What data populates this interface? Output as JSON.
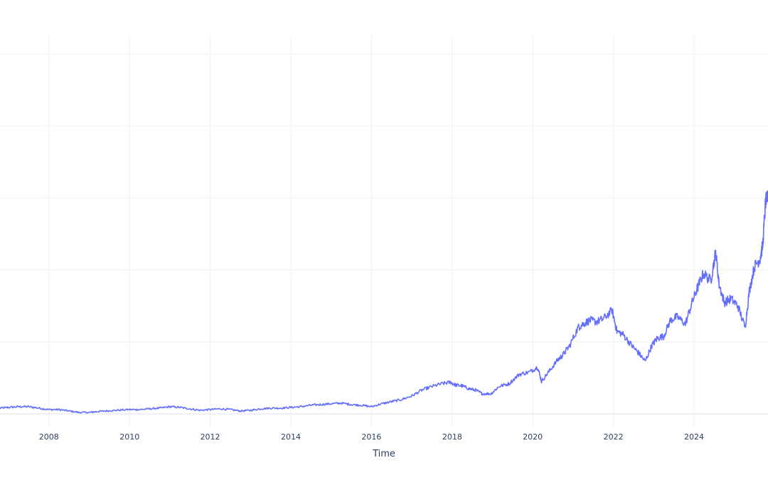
{
  "chart_data": {
    "type": "line",
    "title": "",
    "xlabel": "Time",
    "ylabel": "",
    "xlim": [
      "2006-10-15",
      "2025-11-01"
    ],
    "ylim": [
      0,
      5
    ],
    "grid": true,
    "legend": "none",
    "x_ticks": [
      "2008",
      "2010",
      "2012",
      "2014",
      "2016",
      "2018",
      "2020",
      "2022",
      "2024"
    ],
    "y_gridlines": [
      0,
      1,
      2,
      3,
      4,
      5
    ],
    "series": [
      {
        "color": "#636efa",
        "x": [
          "2006-10-15",
          "2007-01-01",
          "2007-04-01",
          "2007-07-01",
          "2007-10-01",
          "2008-01-01",
          "2008-04-01",
          "2008-07-01",
          "2008-10-01",
          "2009-01-01",
          "2009-03-01",
          "2009-06-01",
          "2009-09-01",
          "2010-01-01",
          "2010-04-01",
          "2010-07-01",
          "2010-10-01",
          "2011-01-01",
          "2011-04-01",
          "2011-07-01",
          "2011-10-01",
          "2012-01-01",
          "2012-04-01",
          "2012-07-01",
          "2012-10-01",
          "2013-01-01",
          "2013-04-01",
          "2013-07-01",
          "2013-10-01",
          "2014-01-01",
          "2014-04-01",
          "2014-07-01",
          "2014-10-01",
          "2015-01-01",
          "2015-04-01",
          "2015-07-01",
          "2015-10-01",
          "2016-01-01",
          "2016-04-01",
          "2016-07-01",
          "2016-10-01",
          "2017-01-01",
          "2017-04-01",
          "2017-07-01",
          "2017-10-01",
          "2017-12-15",
          "2018-02-01",
          "2018-04-01",
          "2018-06-01",
          "2018-08-01",
          "2018-10-01",
          "2018-12-20",
          "2019-03-01",
          "2019-06-01",
          "2019-09-01",
          "2019-12-01",
          "2020-02-15",
          "2020-03-20",
          "2020-06-01",
          "2020-08-15",
          "2020-10-01",
          "2020-12-01",
          "2021-02-15",
          "2021-04-01",
          "2021-06-01",
          "2021-08-01",
          "2021-10-01",
          "2021-12-20",
          "2022-02-01",
          "2022-04-01",
          "2022-06-15",
          "2022-08-15",
          "2022-10-15",
          "2022-12-15",
          "2023-02-01",
          "2023-04-01",
          "2023-06-01",
          "2023-08-01",
          "2023-10-15",
          "2023-12-15",
          "2024-02-01",
          "2024-03-25",
          "2024-06-01",
          "2024-07-15",
          "2024-08-15",
          "2024-10-01",
          "2024-12-01",
          "2025-02-01",
          "2025-04-08",
          "2025-05-15",
          "2025-07-01",
          "2025-08-20",
          "2025-09-15",
          "2025-10-10",
          "2025-11-01"
        ],
        "y": [
          0.08,
          0.09,
          0.1,
          0.1,
          0.08,
          0.06,
          0.06,
          0.04,
          0.02,
          0.02,
          0.03,
          0.04,
          0.05,
          0.06,
          0.06,
          0.07,
          0.08,
          0.1,
          0.09,
          0.07,
          0.05,
          0.06,
          0.07,
          0.06,
          0.04,
          0.05,
          0.07,
          0.08,
          0.08,
          0.09,
          0.1,
          0.12,
          0.13,
          0.14,
          0.15,
          0.13,
          0.12,
          0.1,
          0.14,
          0.17,
          0.2,
          0.25,
          0.33,
          0.38,
          0.42,
          0.44,
          0.4,
          0.39,
          0.35,
          0.33,
          0.28,
          0.28,
          0.38,
          0.42,
          0.55,
          0.58,
          0.65,
          0.45,
          0.6,
          0.75,
          0.82,
          0.95,
          1.2,
          1.25,
          1.3,
          1.28,
          1.32,
          1.44,
          1.15,
          1.1,
          0.95,
          0.85,
          0.73,
          0.95,
          1.05,
          1.08,
          1.3,
          1.35,
          1.25,
          1.55,
          1.75,
          1.95,
          1.85,
          2.25,
          1.8,
          1.55,
          1.6,
          1.5,
          1.2,
          1.7,
          2.05,
          2.15,
          2.35,
          2.95,
          3.0
        ]
      }
    ]
  }
}
